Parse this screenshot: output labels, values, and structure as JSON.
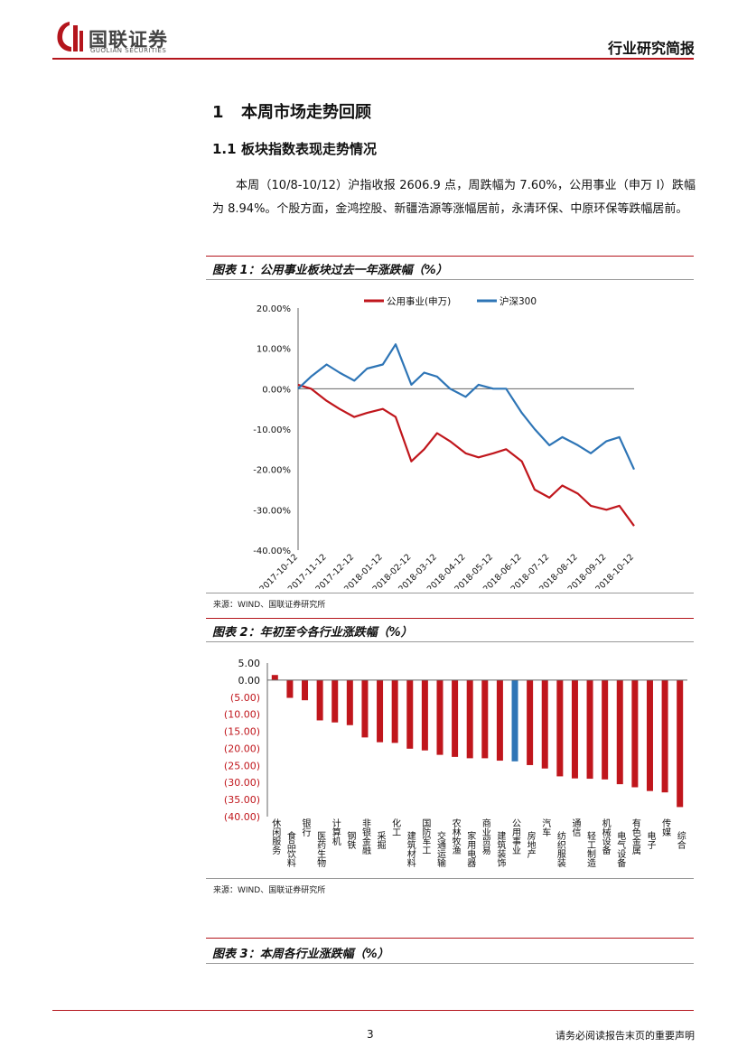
{
  "header": {
    "brand_name": "国联证券",
    "brand_sub": "GUOLIAN SECURITIES",
    "report_type": "行业研究简报",
    "colors": {
      "brand_red": "#b4151c"
    }
  },
  "section": {
    "number": "1",
    "title": "本周市场走势回顾"
  },
  "subsection": {
    "number": "1.1",
    "title": "板块指数表现走势情况"
  },
  "paragraph": "本周（10/8-10/12）沪指收报 2606.9 点，周跌幅为 7.60%，公用事业（申万 I）跌幅为 8.94%。个股方面，金鸿控股、新疆浩源等涨幅居前，永清环保、中原环保等跌幅居前。",
  "figure1": {
    "title": "图表 1：公用事业板块过去一年涨跌幅（%）",
    "source": "来源：WIND、国联证券研究所"
  },
  "figure2": {
    "title": "图表 2：年初至今各行业涨跌幅（%）",
    "source": "来源：WIND、国联证券研究所"
  },
  "figure3": {
    "title": "图表 3：本周各行业涨跌幅（%）"
  },
  "footer": {
    "page": "3",
    "disclaimer": "请务必阅读报告末页的重要声明"
  },
  "chart_data": [
    {
      "type": "line",
      "ylim": [
        -40,
        20
      ],
      "ytick_labels": [
        "20.00%",
        "10.00%",
        "0.00%",
        "-10.00%",
        "-20.00%",
        "-30.00%",
        "-40.00%"
      ],
      "xtick_labels": [
        "2017-10-12",
        "2017-11-12",
        "2017-12-12",
        "2018-01-12",
        "2018-02-12",
        "2018-03-12",
        "2018-04-12",
        "2018-05-12",
        "2018-06-12",
        "2018-07-12",
        "2018-08-12",
        "2018-09-12",
        "2018-10-12"
      ],
      "legend_position": "top",
      "series": [
        {
          "name": "公用事业(申万)",
          "color": "#c0161c",
          "x": [
            "2017-10-12",
            "2017-10-26",
            "2017-11-12",
            "2017-11-26",
            "2017-12-12",
            "2017-12-26",
            "2018-01-12",
            "2018-01-26",
            "2018-02-12",
            "2018-02-26",
            "2018-03-12",
            "2018-03-26",
            "2018-04-12",
            "2018-04-26",
            "2018-05-12",
            "2018-05-26",
            "2018-06-12",
            "2018-06-26",
            "2018-07-12",
            "2018-07-26",
            "2018-08-12",
            "2018-08-26",
            "2018-09-12",
            "2018-09-26",
            "2018-10-12"
          ],
          "values": [
            1,
            0,
            -3,
            -5,
            -7,
            -6,
            -5,
            -7,
            -18,
            -15,
            -11,
            -13,
            -16,
            -17,
            -16,
            -15,
            -18,
            -25,
            -27,
            -24,
            -26,
            -29,
            -30,
            -29,
            -34
          ]
        },
        {
          "name": "沪深300",
          "color": "#2e75b6",
          "x": [
            "2017-10-12",
            "2017-10-26",
            "2017-11-12",
            "2017-11-26",
            "2017-12-12",
            "2017-12-26",
            "2018-01-12",
            "2018-01-26",
            "2018-02-12",
            "2018-02-26",
            "2018-03-12",
            "2018-03-26",
            "2018-04-12",
            "2018-04-26",
            "2018-05-12",
            "2018-05-26",
            "2018-06-12",
            "2018-06-26",
            "2018-07-12",
            "2018-07-26",
            "2018-08-12",
            "2018-08-26",
            "2018-09-12",
            "2018-09-26",
            "2018-10-12"
          ],
          "values": [
            0,
            3,
            6,
            4,
            2,
            5,
            6,
            11,
            1,
            4,
            3,
            0,
            -2,
            1,
            0,
            0,
            -6,
            -10,
            -14,
            -12,
            -14,
            -16,
            -13,
            -12,
            -20
          ]
        }
      ]
    },
    {
      "type": "bar",
      "ylim": [
        -40,
        5
      ],
      "ytick_labels": [
        "5.00",
        "0.00",
        "(5.00)",
        "(10.00)",
        "(15.00)",
        "(20.00)",
        "(25.00)",
        "(30.00)",
        "(35.00)",
        "(40.00)"
      ],
      "categories": [
        "休闲服务",
        "食品饮料",
        "银行",
        "医药生物",
        "计算机",
        "钢铁",
        "非银金融",
        "采掘",
        "化工",
        "建筑材料",
        "国防军工",
        "交通运输",
        "农林牧渔",
        "家用电器",
        "商业贸易",
        "建筑装饰",
        "公用事业",
        "房地产",
        "汽车",
        "纺织服装",
        "通信",
        "轻工制造",
        "机械设备",
        "电气设备",
        "有色金属",
        "电子",
        "传媒",
        "综合"
      ],
      "values": [
        1.5,
        -5.2,
        -5.9,
        -11.8,
        -12.4,
        -13.2,
        -16.8,
        -18.2,
        -18.4,
        -20.1,
        -20.6,
        -21.9,
        -22.5,
        -22.9,
        -22.9,
        -23.6,
        -23.8,
        -24.9,
        -25.9,
        -28.2,
        -28.8,
        -28.9,
        -29.1,
        -30.5,
        -31.4,
        -32.5,
        -32.9,
        -37.2
      ],
      "highlight": "公用事业",
      "colors": {
        "default": "#c0161c",
        "highlight": "#2e75b6"
      }
    }
  ]
}
